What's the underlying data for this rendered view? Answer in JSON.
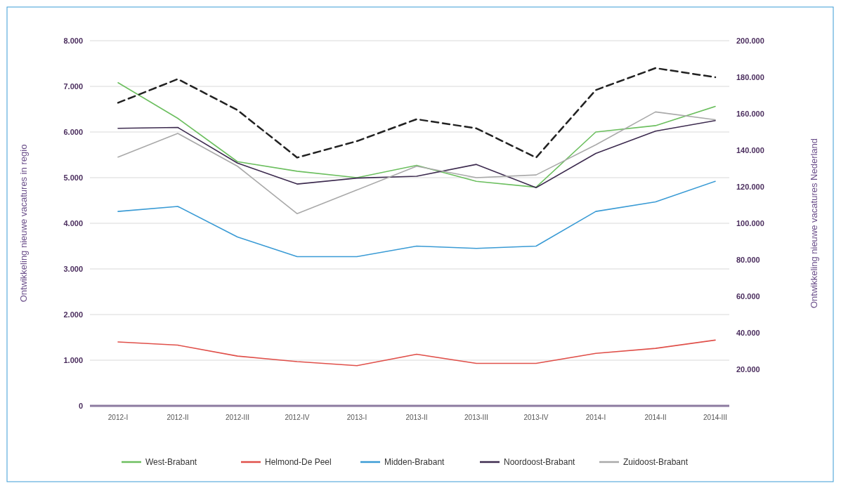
{
  "chart_data": {
    "type": "line",
    "ylabel": "Ontwikkeling nieuwe vacatures in regio",
    "y2label": "Ontwikkeling nieuwe vacatures Nederland",
    "categories": [
      "2012-I",
      "2012-II",
      "2012-III",
      "2012-IV",
      "2013-I",
      "2013-II",
      "2013-III",
      "2013-IV",
      "2014-I",
      "2014-II",
      "2014-III"
    ],
    "series": [
      {
        "name": "West-Brabant",
        "color": "#6cbf5f",
        "values": [
          7080,
          6300,
          5350,
          5140,
          5000,
          5270,
          4920,
          4790,
          6000,
          6140,
          6560
        ]
      },
      {
        "name": "Helmond-De Peel",
        "color": "#e0504a",
        "values": [
          1400,
          1330,
          1090,
          970,
          880,
          1130,
          930,
          930,
          1150,
          1260,
          1440
        ]
      },
      {
        "name": "Midden-Brabant",
        "color": "#3a9bd5",
        "values": [
          4260,
          4370,
          3700,
          3270,
          3270,
          3500,
          3450,
          3500,
          4260,
          4470,
          4920
        ]
      },
      {
        "name": "Noordoost-Brabant",
        "color": "#3d2b4f",
        "values": [
          6080,
          6100,
          5320,
          4860,
          4990,
          5030,
          5290,
          4780,
          5530,
          6020,
          6250
        ]
      },
      {
        "name": "Zuidoost-Brabant",
        "color": "#a9a9a9",
        "values": [
          5450,
          5970,
          5250,
          4210,
          4730,
          5250,
          5000,
          5060,
          5720,
          6440,
          6270
        ]
      },
      {
        "color": "#222222",
        "axis": "y2",
        "line_style": "dashed",
        "values": [
          166000,
          179000,
          162000,
          136000,
          145000,
          157000,
          152000,
          136000,
          173000,
          185000,
          180000
        ]
      }
    ],
    "ylim": [
      0,
      8000
    ],
    "yticks": [
      0,
      {
        "value": 1000,
        "label": "1.000"
      },
      {
        "value": 2000,
        "label": "2.000"
      },
      {
        "value": 3000,
        "label": "3.000"
      },
      {
        "value": 4000,
        "label": "4.000"
      },
      {
        "value": 5000,
        "label": "5.000"
      },
      {
        "value": 6000,
        "label": "6.000"
      },
      {
        "value": 7000,
        "label": "7.000"
      },
      {
        "value": 8000,
        "label": "8.000"
      }
    ],
    "y2lim": [
      0,
      200000
    ],
    "y2ticks": [
      {
        "value": 20000,
        "label": "20.000"
      },
      {
        "value": 40000,
        "label": "40.000"
      },
      {
        "value": 60000,
        "label": "60.000"
      },
      {
        "value": 80000,
        "label": "80.000"
      },
      {
        "value": 100000,
        "label": "100.000"
      },
      {
        "value": 120000,
        "label": "120.000"
      },
      {
        "value": 140000,
        "label": "140.000"
      },
      {
        "value": 160000,
        "label": "160.000"
      },
      {
        "value": 180000,
        "label": "180.000"
      },
      {
        "value": 200000,
        "label": "200.000"
      }
    ],
    "grid": "y",
    "legend": "bottom",
    "marker": "none",
    "line_style": "solid"
  }
}
